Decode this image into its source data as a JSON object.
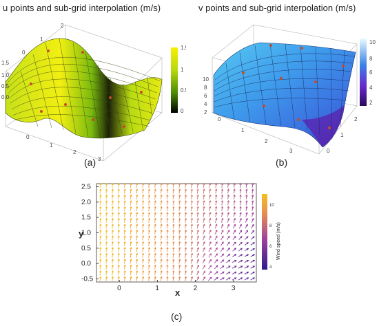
{
  "panel_a": {
    "title": "u points and sub-grid interpolation (m/s)",
    "caption": "(a)",
    "colorbar_ticks": [
      "1.5",
      "1",
      "0.5",
      "0"
    ],
    "vertical_ticks": [
      "1.5",
      "1.0",
      "0.5",
      "0.0"
    ],
    "depth_ticks": [
      "0",
      "1",
      "2"
    ],
    "front_ticks": [
      "0",
      "1",
      "2",
      "3"
    ]
  },
  "panel_b": {
    "title": "v points and sub-grid interpolation (m/s)",
    "caption": "(b)",
    "colorbar_ticks": [
      "10",
      "8",
      "6",
      "4",
      "2"
    ],
    "vertical_ticks": [
      "10",
      "8",
      "6",
      "4",
      "2"
    ],
    "front_ticks": [
      "0",
      "1",
      "2",
      "3"
    ],
    "side_ticks": [
      "0",
      "1",
      "2"
    ]
  },
  "panel_c": {
    "caption": "(c)",
    "xlabel": "x",
    "ylabel": "y",
    "colorbar_label": "Wind speed (m/s)",
    "colorbar_ticks": [
      "10",
      "8",
      "6",
      "4"
    ]
  },
  "colors": {
    "surface_a_high": "#f4f200",
    "surface_a_mid": "#8ccc10",
    "surface_a_low": "#111111",
    "surface_b_high": "#5fe0f5",
    "surface_b_mid": "#3a8ae6",
    "surface_b_low": "#5a1aa8",
    "sample_point": "#c84a2a"
  },
  "chart_data": [
    {
      "type": "surface",
      "panel": "a",
      "x_range": [
        0,
        3.5
      ],
      "y_range": [
        -0.5,
        2.5
      ],
      "z_range": [
        0,
        1.5
      ],
      "colorbar_range": [
        0,
        1.5
      ]
    },
    {
      "type": "surface",
      "panel": "b",
      "x_range": [
        0,
        3.5
      ],
      "y_range": [
        -0.5,
        2.5
      ],
      "z_range": [
        2,
        10
      ],
      "colorbar_range": [
        2,
        10.5
      ]
    },
    {
      "type": "vector_field",
      "panel": "c",
      "xlabel": "x",
      "ylabel": "y",
      "x_ticks": [
        0,
        1,
        2,
        3
      ],
      "y_ticks": [
        2.5,
        2.0,
        1.5,
        1.0,
        0.5,
        0.0,
        -0.5
      ],
      "x_range": [
        -0.6,
        3.6
      ],
      "y_range": [
        -0.6,
        2.6
      ],
      "colorbar_range": [
        4,
        11
      ],
      "colorbar_ticks": [
        10,
        8,
        6,
        4
      ],
      "field": "wind arrows pointing mostly +y; lower-right region rotated toward +x with lower speed"
    }
  ]
}
